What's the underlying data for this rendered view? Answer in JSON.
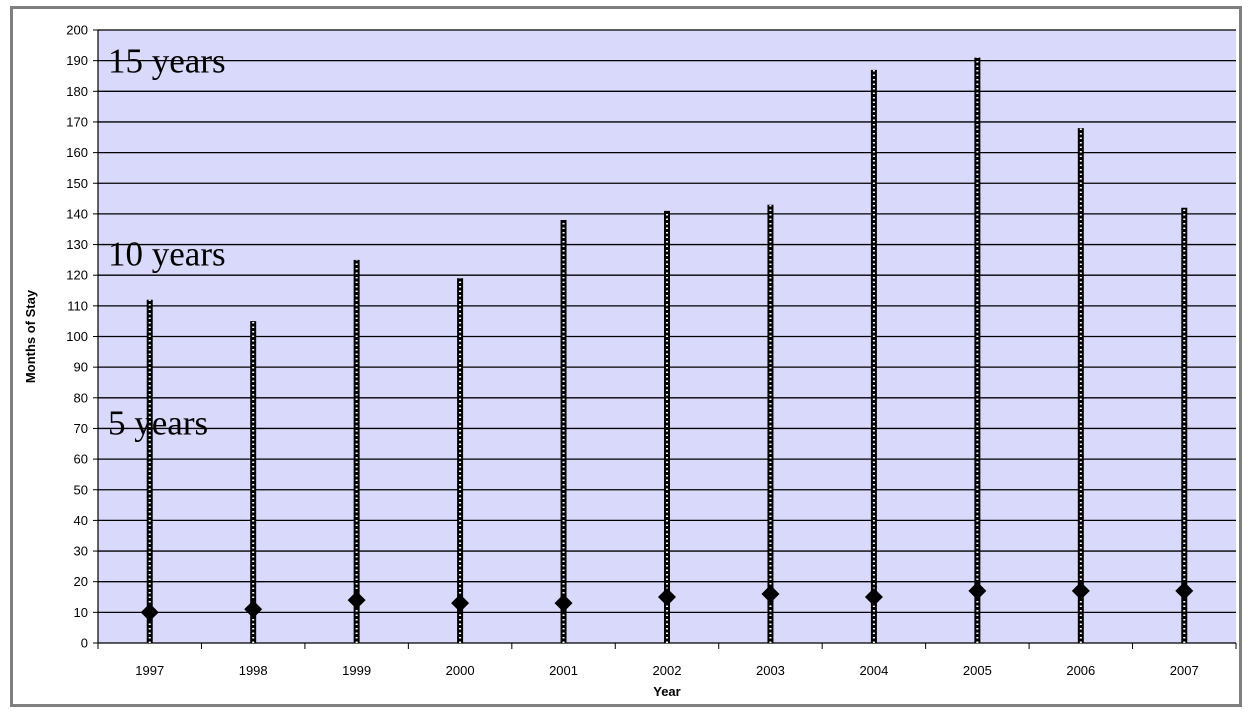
{
  "colors": {
    "plot_bg": "#d9d9fb",
    "gridline": "#000000",
    "bar": "#000000",
    "marker": "#000000",
    "frame": "#7f7f7f"
  },
  "chart_data": {
    "type": "line",
    "title": "",
    "xlabel": "Year",
    "ylabel": "Months of Stay",
    "ylim": [
      0,
      200
    ],
    "ytick_step": 10,
    "grid": true,
    "legend": "none",
    "categories": [
      "1997",
      "1998",
      "1999",
      "2000",
      "2001",
      "2002",
      "2003",
      "2004",
      "2005",
      "2006",
      "2007"
    ],
    "series": [
      {
        "style": "range-line",
        "min": [
          0,
          0,
          0,
          0,
          0,
          0,
          0,
          0,
          0,
          0,
          0
        ],
        "max": [
          112,
          105,
          125,
          119,
          138,
          141,
          143,
          187,
          191,
          168,
          142
        ]
      },
      {
        "style": "diamond-marker",
        "values": [
          10,
          11,
          14,
          13,
          13,
          15,
          16,
          15,
          17,
          17,
          17
        ]
      }
    ],
    "annotations": [
      {
        "text": "15 years",
        "y": 190
      },
      {
        "text": "10 years",
        "y": 127
      },
      {
        "text": "5 years",
        "y": 72
      }
    ]
  }
}
